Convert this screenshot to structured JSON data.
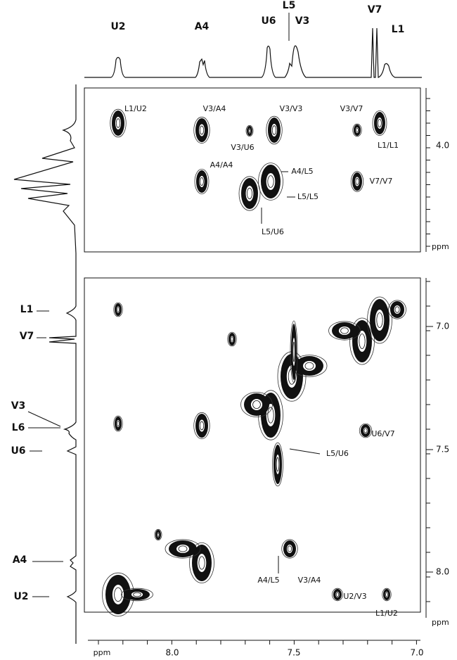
{
  "top_spectrum": {
    "peaks": [
      "U2",
      "A4",
      "U6",
      "L5",
      "V3",
      "V7",
      "L1"
    ]
  },
  "left_spectrum": {
    "peaks": [
      "L1",
      "V7",
      "V3",
      "L6",
      "U6",
      "A4",
      "U2"
    ]
  },
  "upper_panel": {
    "labels": [
      "L1/U2",
      "V3/A4",
      "V3/V3",
      "V3/V7",
      "V3/U6",
      "L1/L1",
      "A4/A4",
      "A4/L5",
      "L5/L5",
      "V7/V7",
      "L5/U6"
    ],
    "axis": {
      "ticks": [
        "4.0"
      ],
      "unit": "ppm"
    }
  },
  "lower_panel": {
    "labels": [
      "L5/U6",
      "U6/V7",
      "A4/L5",
      "V3/A4",
      "U2/V3",
      "L1/U2"
    ],
    "axis": {
      "ticks": [
        "7.0",
        "7.5",
        "8.0"
      ],
      "unit": "ppm"
    }
  },
  "x_axis": {
    "unit": "ppm",
    "ticks": [
      "8.0",
      "7.5",
      "7.0"
    ]
  }
}
